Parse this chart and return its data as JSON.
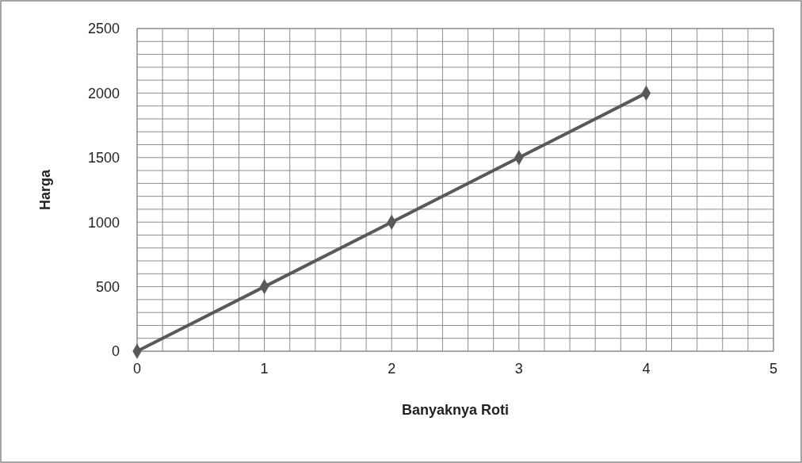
{
  "chart_data": {
    "type": "line",
    "xlabel": "Banyaknya Roti",
    "ylabel": "Harga",
    "x": [
      0,
      1,
      2,
      3,
      4
    ],
    "series": [
      {
        "color": "#595959",
        "values": [
          0,
          500,
          1000,
          1500,
          2000
        ]
      }
    ],
    "xlim": [
      0,
      5
    ],
    "xticks": [
      0,
      {
        "value": 0.2,
        "label": null
      },
      {
        "value": 0.4,
        "label": null
      },
      {
        "value": 0.6,
        "label": null
      },
      {
        "value": 0.8,
        "label": null
      },
      1,
      {
        "value": 1.2,
        "label": null
      },
      {
        "value": 1.4,
        "label": null
      },
      {
        "value": 1.6,
        "label": null
      },
      {
        "value": 1.8,
        "label": null
      },
      2,
      {
        "value": 2.2,
        "label": null
      },
      {
        "value": 2.4,
        "label": null
      },
      {
        "value": 2.6,
        "label": null
      },
      {
        "value": 2.8,
        "label": null
      },
      3,
      {
        "value": 3.2,
        "label": null
      },
      {
        "value": 3.4,
        "label": null
      },
      {
        "value": 3.6,
        "label": null
      },
      {
        "value": 3.8,
        "label": null
      },
      4,
      {
        "value": 4.2,
        "label": null
      },
      {
        "value": 4.4,
        "label": null
      },
      {
        "value": 4.6,
        "label": null
      },
      {
        "value": 4.8,
        "label": null
      },
      5
    ],
    "ylim": [
      0,
      2500
    ],
    "yticks": [
      0,
      {
        "value": 100,
        "label": null
      },
      {
        "value": 200,
        "label": null
      },
      {
        "value": 300,
        "label": null
      },
      {
        "value": 400,
        "label": null
      },
      500,
      {
        "value": 600,
        "label": null
      },
      {
        "value": 700,
        "label": null
      },
      {
        "value": 800,
        "label": null
      },
      {
        "value": 900,
        "label": null
      },
      1000,
      {
        "value": 1100,
        "label": null
      },
      {
        "value": 1200,
        "label": null
      },
      {
        "value": 1300,
        "label": null
      },
      {
        "value": 1400,
        "label": null
      },
      1500,
      {
        "value": 1600,
        "label": null
      },
      {
        "value": 1700,
        "label": null
      },
      {
        "value": 1800,
        "label": null
      },
      {
        "value": 1900,
        "label": null
      },
      2000,
      {
        "value": 2100,
        "label": null
      },
      {
        "value": 2200,
        "label": null
      },
      {
        "value": 2300,
        "label": null
      },
      {
        "value": 2400,
        "label": null
      },
      2500
    ],
    "grid": true,
    "marker": "diamond",
    "line_style": "solid"
  }
}
